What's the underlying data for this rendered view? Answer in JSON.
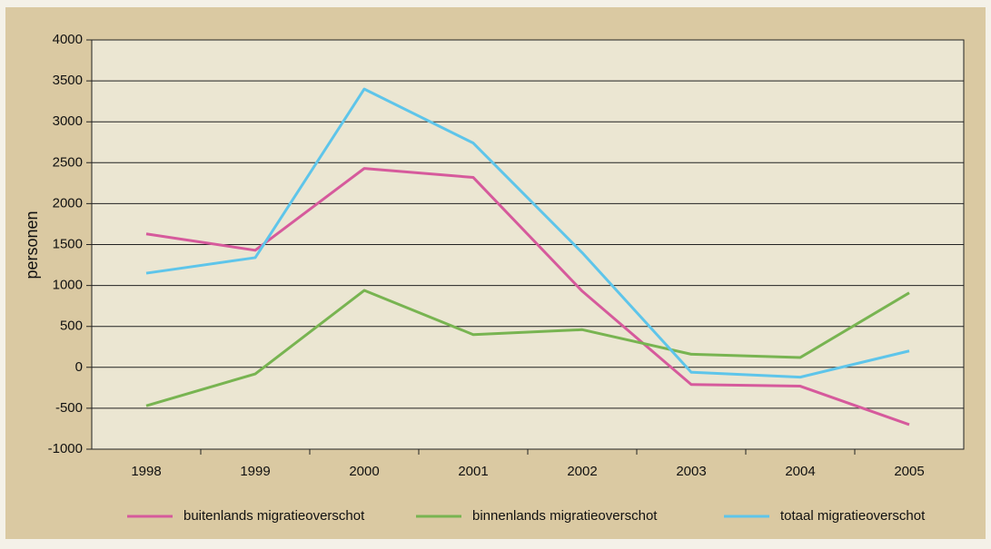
{
  "chart_data": {
    "type": "line",
    "ylabel": "personen",
    "categories": [
      "1998",
      "1999",
      "2000",
      "2001",
      "2002",
      "2003",
      "2004",
      "2005"
    ],
    "series": [
      {
        "name": "buitenlands  migratieoverschot",
        "color": "#d65a9c",
        "values": [
          1630,
          1430,
          2430,
          2320,
          930,
          -210,
          -230,
          -700
        ]
      },
      {
        "name": "binnenlands  migratieoverschot",
        "color": "#78b451",
        "values": [
          -470,
          -80,
          940,
          400,
          460,
          160,
          120,
          910
        ]
      },
      {
        "name": "totaal  migratieoverschot",
        "color": "#5ec5ea",
        "values": [
          1150,
          1340,
          3400,
          2740,
          1400,
          -60,
          -120,
          200
        ]
      }
    ],
    "ylim": [
      -1000,
      4000
    ],
    "yticks": [
      -1000,
      -500,
      0,
      500,
      1000,
      1500,
      2000,
      2500,
      3000,
      3500,
      4000
    ],
    "grid": true,
    "legend": "bottom"
  }
}
